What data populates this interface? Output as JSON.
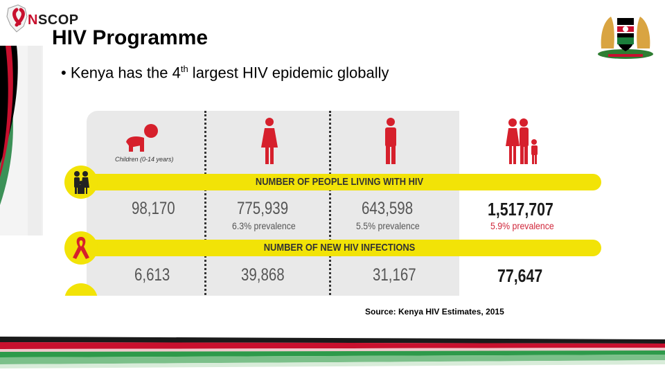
{
  "header": {
    "logo": {
      "text_prefix": "N",
      "text_suffix": "SCOP",
      "icon": "ribbon-kenya-map-icon"
    },
    "title": "HIV Programme",
    "bullet": {
      "marker": "•",
      "before": "Kenya has the 4",
      "sup": "th",
      "after": " largest  HIV epidemic globally"
    },
    "emblem": "kenya-coat-of-arms-icon"
  },
  "infographic": {
    "child_label": "Children (0-14 years)",
    "column_icons": [
      "crawling-child-icon",
      "female-icon",
      "male-icon",
      "family-icon"
    ],
    "rows": [
      {
        "icon": "family-icon",
        "label": "NUMBER OF PEOPLE LIVING WITH HIV",
        "values": [
          "98,170",
          "775,939",
          "643,598",
          "1,517,707"
        ],
        "prevalence": [
          "",
          "6.3% prevalence",
          "5.5% prevalence",
          "5.9% prevalence"
        ]
      },
      {
        "icon": "red-ribbon-icon",
        "label": "NUMBER OF NEW HIV INFECTIONS",
        "values": [
          "6,613",
          "39,868",
          "31,167",
          "77,647"
        ]
      }
    ],
    "colors": {
      "band": "#f2e307",
      "figure": "#d6202c",
      "card": "#e9e9e9"
    }
  },
  "source": "Source: Kenya HIV Estimates, 2015"
}
